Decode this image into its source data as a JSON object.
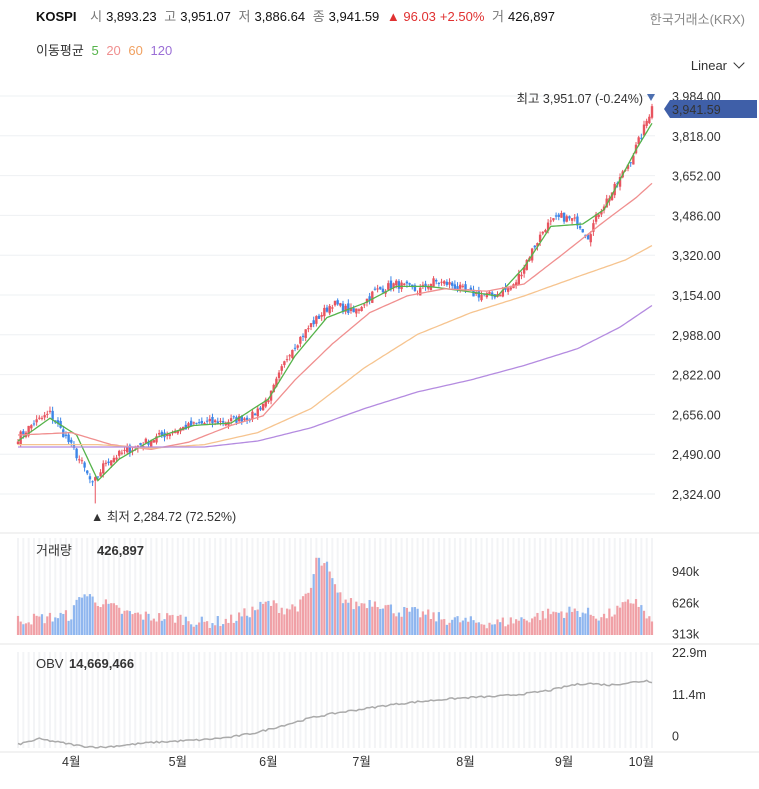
{
  "header": {
    "symbol": "KOSPI",
    "open_label": "시",
    "open": "3,893.23",
    "high_label": "고",
    "high": "3,951.07",
    "low_label": "저",
    "low": "3,886.64",
    "close_label": "종",
    "close": "3,941.59",
    "change": "▲ 96.03",
    "change_pct": "+2.50%",
    "volume_label": "거",
    "volume": "426,897",
    "exchange": "한국거래소(KRX)"
  },
  "moving_avg": {
    "label": "이동평균",
    "periods": [
      "5",
      "20",
      "60",
      "120"
    ]
  },
  "scale_selector": "Linear",
  "colors": {
    "up": "#e8545f",
    "down": "#3d86e8",
    "ma5": "#55b34a",
    "ma20": "#f08f8f",
    "ma60": "#f6c48f",
    "ma120": "#b48be0",
    "price_tag": "#3f5fa8",
    "obv": "#aaaaaa"
  },
  "chart_data": [
    {
      "type": "candlestick",
      "title": "KOSPI",
      "y_ticks": [
        "3,984.00",
        "3,818.00",
        "3,652.00",
        "3,486.00",
        "3,320.00",
        "3,154.00",
        "2,988.00",
        "2,822.00",
        "2,656.00",
        "2,490.00",
        "2,324.00"
      ],
      "x_ticks": [
        "4월",
        "5월",
        "6월",
        "7월",
        "8월",
        "9월",
        "10월"
      ],
      "ylim": [
        2284.72,
        3984
      ],
      "last_price_tag": "3,941.59",
      "high_annotation": "최고 3,951.07 (-0.24%)",
      "low_annotation": "▲ 최저 2,284.72 (72.52%)",
      "close_anchors": [
        [
          0,
          2560
        ],
        [
          6,
          2620
        ],
        [
          12,
          2660
        ],
        [
          18,
          2560
        ],
        [
          24,
          2450
        ],
        [
          28,
          2360
        ],
        [
          33,
          2460
        ],
        [
          40,
          2500
        ],
        [
          50,
          2550
        ],
        [
          60,
          2595
        ],
        [
          70,
          2620
        ],
        [
          80,
          2630
        ],
        [
          88,
          2650
        ],
        [
          95,
          2740
        ],
        [
          102,
          2920
        ],
        [
          110,
          3030
        ],
        [
          118,
          3120
        ],
        [
          126,
          3080
        ],
        [
          134,
          3170
        ],
        [
          142,
          3200
        ],
        [
          150,
          3170
        ],
        [
          156,
          3210
        ],
        [
          162,
          3200
        ],
        [
          170,
          3160
        ],
        [
          178,
          3150
        ],
        [
          186,
          3190
        ],
        [
          192,
          3320
        ],
        [
          198,
          3440
        ],
        [
          204,
          3480
        ],
        [
          210,
          3460
        ],
        [
          214,
          3400
        ],
        [
          218,
          3500
        ],
        [
          224,
          3600
        ],
        [
          230,
          3720
        ],
        [
          234,
          3820
        ],
        [
          236,
          3880
        ],
        [
          238,
          3941.59
        ]
      ],
      "ma_anchors": {
        "5": [
          [
            0,
            2545
          ],
          [
            12,
            2640
          ],
          [
            22,
            2570
          ],
          [
            30,
            2380
          ],
          [
            38,
            2470
          ],
          [
            52,
            2560
          ],
          [
            66,
            2610
          ],
          [
            80,
            2620
          ],
          [
            94,
            2720
          ],
          [
            104,
            2900
          ],
          [
            116,
            3060
          ],
          [
            130,
            3120
          ],
          [
            142,
            3190
          ],
          [
            154,
            3190
          ],
          [
            168,
            3170
          ],
          [
            180,
            3150
          ],
          [
            190,
            3270
          ],
          [
            200,
            3440
          ],
          [
            212,
            3450
          ],
          [
            220,
            3510
          ],
          [
            232,
            3760
          ],
          [
            238,
            3870
          ]
        ],
        "20": [
          [
            0,
            2570
          ],
          [
            20,
            2580
          ],
          [
            35,
            2530
          ],
          [
            50,
            2510
          ],
          [
            64,
            2540
          ],
          [
            80,
            2610
          ],
          [
            92,
            2650
          ],
          [
            104,
            2800
          ],
          [
            118,
            2950
          ],
          [
            132,
            3080
          ],
          [
            146,
            3150
          ],
          [
            160,
            3180
          ],
          [
            176,
            3170
          ],
          [
            190,
            3200
          ],
          [
            204,
            3320
          ],
          [
            220,
            3460
          ],
          [
            232,
            3560
          ],
          [
            238,
            3620
          ]
        ],
        "60": [
          [
            0,
            2530
          ],
          [
            30,
            2530
          ],
          [
            50,
            2515
          ],
          [
            70,
            2530
          ],
          [
            90,
            2580
          ],
          [
            110,
            2680
          ],
          [
            130,
            2850
          ],
          [
            150,
            2990
          ],
          [
            170,
            3080
          ],
          [
            190,
            3150
          ],
          [
            210,
            3230
          ],
          [
            228,
            3300
          ],
          [
            238,
            3360
          ]
        ],
        "120": [
          [
            0,
            2520
          ],
          [
            40,
            2520
          ],
          [
            70,
            2520
          ],
          [
            90,
            2545
          ],
          [
            110,
            2600
          ],
          [
            130,
            2680
          ],
          [
            150,
            2750
          ],
          [
            170,
            2800
          ],
          [
            190,
            2860
          ],
          [
            210,
            2930
          ],
          [
            226,
            3020
          ],
          [
            238,
            3110
          ]
        ]
      }
    },
    {
      "type": "bar",
      "title": "거래량",
      "value": "426,897",
      "y_ticks": [
        "940k",
        "626k",
        "313k"
      ],
      "max_value_k": 1150,
      "baseline_k": 300,
      "bar_anchors_k": [
        [
          0,
          450
        ],
        [
          10,
          470
        ],
        [
          20,
          500
        ],
        [
          24,
          720
        ],
        [
          30,
          640
        ],
        [
          40,
          520
        ],
        [
          50,
          480
        ],
        [
          60,
          470
        ],
        [
          70,
          420
        ],
        [
          80,
          450
        ],
        [
          86,
          520
        ],
        [
          94,
          620
        ],
        [
          100,
          560
        ],
        [
          106,
          600
        ],
        [
          110,
          760
        ],
        [
          112,
          1050
        ],
        [
          116,
          980
        ],
        [
          120,
          700
        ],
        [
          126,
          600
        ],
        [
          134,
          640
        ],
        [
          142,
          540
        ],
        [
          150,
          520
        ],
        [
          160,
          460
        ],
        [
          170,
          430
        ],
        [
          180,
          420
        ],
        [
          190,
          460
        ],
        [
          200,
          520
        ],
        [
          210,
          540
        ],
        [
          220,
          480
        ],
        [
          226,
          560
        ],
        [
          232,
          660
        ],
        [
          236,
          480
        ],
        [
          238,
          426.897
        ]
      ]
    },
    {
      "type": "line",
      "title": "OBV",
      "value": "14,669,466",
      "y_ticks": [
        "22.9m",
        "11.4m",
        "0"
      ],
      "ylim": [
        -3.5,
        24
      ],
      "line_anchors_m": [
        [
          0,
          -2.5
        ],
        [
          8,
          -1
        ],
        [
          16,
          -2
        ],
        [
          24,
          -3
        ],
        [
          32,
          -3.3
        ],
        [
          40,
          -2.7
        ],
        [
          50,
          -2
        ],
        [
          60,
          -1.6
        ],
        [
          70,
          -1.2
        ],
        [
          80,
          -0.5
        ],
        [
          90,
          0.8
        ],
        [
          100,
          2.8
        ],
        [
          110,
          4.8
        ],
        [
          120,
          6.2
        ],
        [
          130,
          7.3
        ],
        [
          140,
          8.4
        ],
        [
          150,
          9.2
        ],
        [
          160,
          9.9
        ],
        [
          170,
          10.4
        ],
        [
          180,
          10.7
        ],
        [
          190,
          11.4
        ],
        [
          200,
          12.4
        ],
        [
          208,
          13.8
        ],
        [
          214,
          14.3
        ],
        [
          222,
          13.8
        ],
        [
          230,
          14.5
        ],
        [
          236,
          15.0
        ],
        [
          238,
          14.67
        ]
      ]
    }
  ]
}
